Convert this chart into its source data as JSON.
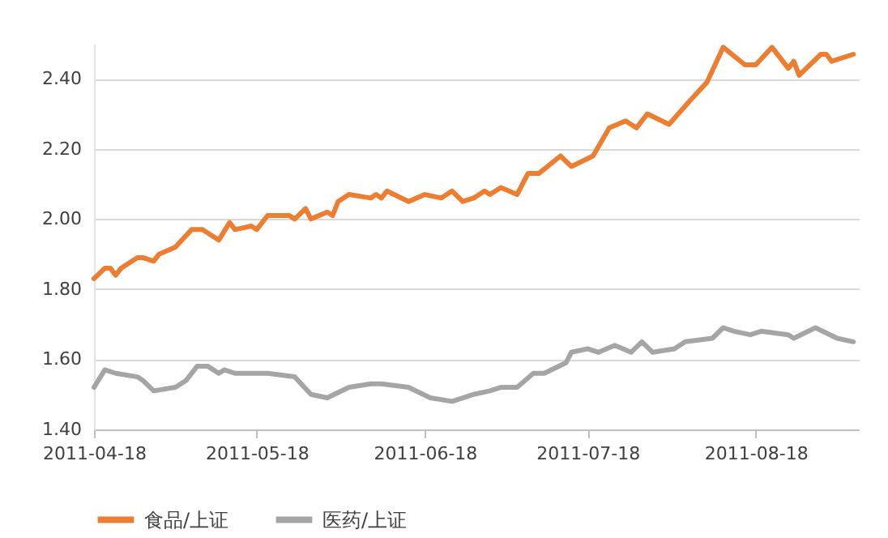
{
  "chart_data": {
    "type": "line",
    "xlim": [
      "2011-04-18",
      "2011-09-06"
    ],
    "xticks": [
      "2011-04-18",
      "2011-05-18",
      "2011-06-18",
      "2011-07-18",
      "2011-08-18"
    ],
    "ylim": [
      1.4,
      2.5
    ],
    "yticks": [
      {
        "value": 1.4,
        "label": "1.40"
      },
      {
        "value": 1.6,
        "label": "1.60"
      },
      {
        "value": 1.8,
        "label": "1.80"
      },
      {
        "value": 2.0,
        "label": "2.00"
      },
      {
        "value": 2.2,
        "label": "2.20"
      },
      {
        "value": 2.4,
        "label": "2.40"
      }
    ],
    "grid": "y",
    "legend": "bottom",
    "marker": "none",
    "line_style": "solid",
    "series": [
      {
        "name": "食品/上证",
        "color": "#ed7d31",
        "x": [
          "2011-04-18",
          "2011-04-20",
          "2011-04-21",
          "2011-04-22",
          "2011-04-23",
          "2011-04-26",
          "2011-04-27",
          "2011-04-29",
          "2011-04-30",
          "2011-05-03",
          "2011-05-06",
          "2011-05-08",
          "2011-05-11",
          "2011-05-13",
          "2011-05-14",
          "2011-05-17",
          "2011-05-18",
          "2011-05-20",
          "2011-05-24",
          "2011-05-25",
          "2011-05-27",
          "2011-05-28",
          "2011-05-31",
          "2011-06-01",
          "2011-06-02",
          "2011-06-04",
          "2011-06-08",
          "2011-06-09",
          "2011-06-10",
          "2011-06-11",
          "2011-06-15",
          "2011-06-18",
          "2011-06-21",
          "2011-06-23",
          "2011-06-25",
          "2011-06-27",
          "2011-06-29",
          "2011-06-30",
          "2011-07-02",
          "2011-07-05",
          "2011-07-07",
          "2011-07-09",
          "2011-07-13",
          "2011-07-15",
          "2011-07-19",
          "2011-07-22",
          "2011-07-25",
          "2011-07-27",
          "2011-07-29",
          "2011-08-02",
          "2011-08-06",
          "2011-08-09",
          "2011-08-12",
          "2011-08-16",
          "2011-08-18",
          "2011-08-21",
          "2011-08-24",
          "2011-08-25",
          "2011-08-26",
          "2011-08-30",
          "2011-08-31",
          "2011-09-01",
          "2011-09-05"
        ],
        "values": [
          1.83,
          1.86,
          1.86,
          1.84,
          1.86,
          1.89,
          1.89,
          1.88,
          1.9,
          1.92,
          1.97,
          1.97,
          1.94,
          1.99,
          1.97,
          1.98,
          1.97,
          2.01,
          2.01,
          2.0,
          2.03,
          2.0,
          2.02,
          2.01,
          2.05,
          2.07,
          2.06,
          2.07,
          2.06,
          2.08,
          2.05,
          2.07,
          2.06,
          2.08,
          2.05,
          2.06,
          2.08,
          2.07,
          2.09,
          2.07,
          2.13,
          2.13,
          2.18,
          2.15,
          2.18,
          2.26,
          2.28,
          2.26,
          2.3,
          2.27,
          2.34,
          2.39,
          2.49,
          2.44,
          2.44,
          2.49,
          2.43,
          2.45,
          2.41,
          2.47,
          2.47,
          2.45,
          2.47
        ]
      },
      {
        "name": "医药/上证",
        "color": "#a5a5a5",
        "x": [
          "2011-04-18",
          "2011-04-20",
          "2011-04-22",
          "2011-04-26",
          "2011-04-27",
          "2011-04-29",
          "2011-05-03",
          "2011-05-05",
          "2011-05-07",
          "2011-05-09",
          "2011-05-11",
          "2011-05-12",
          "2011-05-14",
          "2011-05-18",
          "2011-05-19",
          "2011-05-20",
          "2011-05-25",
          "2011-05-28",
          "2011-05-31",
          "2011-06-04",
          "2011-06-08",
          "2011-06-10",
          "2011-06-15",
          "2011-06-19",
          "2011-06-23",
          "2011-06-25",
          "2011-06-27",
          "2011-06-30",
          "2011-07-02",
          "2011-07-05",
          "2011-07-08",
          "2011-07-10",
          "2011-07-14",
          "2011-07-15",
          "2011-07-18",
          "2011-07-20",
          "2011-07-23",
          "2011-07-26",
          "2011-07-28",
          "2011-07-30",
          "2011-08-03",
          "2011-08-05",
          "2011-08-10",
          "2011-08-12",
          "2011-08-14",
          "2011-08-17",
          "2011-08-19",
          "2011-08-24",
          "2011-08-25",
          "2011-08-29",
          "2011-09-02",
          "2011-09-05"
        ],
        "values": [
          1.52,
          1.57,
          1.56,
          1.55,
          1.54,
          1.51,
          1.52,
          1.54,
          1.58,
          1.58,
          1.56,
          1.57,
          1.56,
          1.56,
          1.56,
          1.56,
          1.55,
          1.5,
          1.49,
          1.52,
          1.53,
          1.53,
          1.52,
          1.49,
          1.48,
          1.49,
          1.5,
          1.51,
          1.52,
          1.52,
          1.56,
          1.56,
          1.59,
          1.62,
          1.63,
          1.62,
          1.64,
          1.62,
          1.65,
          1.62,
          1.63,
          1.65,
          1.66,
          1.69,
          1.68,
          1.67,
          1.68,
          1.67,
          1.66,
          1.69,
          1.66,
          1.65
        ]
      }
    ]
  }
}
